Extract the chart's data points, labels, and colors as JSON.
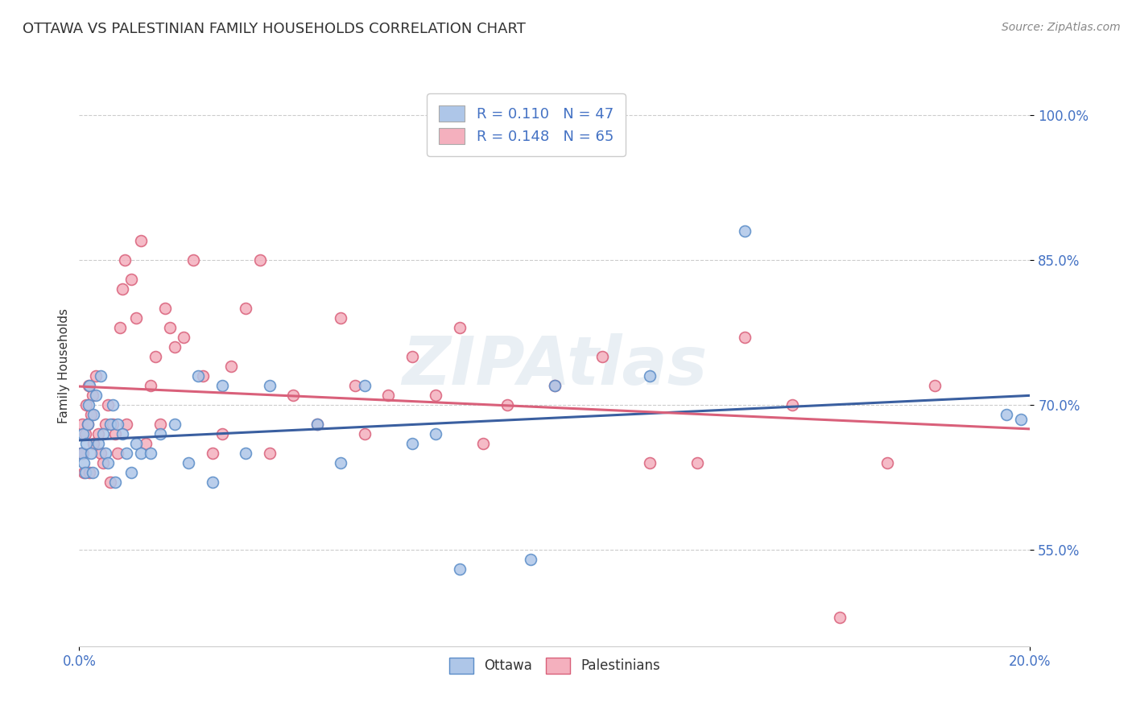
{
  "title": "OTTAWA VS PALESTINIAN FAMILY HOUSEHOLDS CORRELATION CHART",
  "source_text": "Source: ZipAtlas.com",
  "ylabel": "Family Households",
  "xlim": [
    0.0,
    20.0
  ],
  "ylim": [
    45.0,
    103.0
  ],
  "yticks": [
    55.0,
    70.0,
    85.0,
    100.0
  ],
  "xticks": [
    0.0,
    20.0
  ],
  "watermark": "ZIPAtlas",
  "title_color": "#333333",
  "title_fontsize": 13,
  "axis_color": "#4472c4",
  "bg_color": "#ffffff",
  "grid_color": "#cccccc",
  "ottawa_dot_color": "#aec6e8",
  "ottawa_dot_edge": "#5b8dc8",
  "palestinian_dot_color": "#f4b0be",
  "palestinian_dot_edge": "#d9607a",
  "ottawa_line_color": "#3a5fa0",
  "palestinian_line_color": "#d9607a",
  "legend_box_colors": [
    "#aec6e8",
    "#f4b0be"
  ],
  "legend_texts": [
    "R = 0.110   N = 47",
    "R = 0.148   N = 65"
  ],
  "source_color": "#888888",
  "bottom_legend_labels": [
    "Ottawa",
    "Palestinians"
  ],
  "ottawa_x": [
    0.05,
    0.08,
    0.1,
    0.12,
    0.15,
    0.18,
    0.2,
    0.22,
    0.25,
    0.28,
    0.3,
    0.35,
    0.4,
    0.45,
    0.5,
    0.55,
    0.6,
    0.65,
    0.7,
    0.75,
    0.8,
    0.9,
    1.0,
    1.1,
    1.2,
    1.3,
    1.5,
    1.7,
    2.0,
    2.3,
    2.5,
    2.8,
    3.0,
    3.5,
    4.0,
    5.0,
    5.5,
    6.0,
    7.0,
    7.5,
    8.0,
    9.5,
    10.0,
    12.0,
    14.0,
    19.5,
    19.8
  ],
  "ottawa_y": [
    65.0,
    67.0,
    64.0,
    63.0,
    66.0,
    68.0,
    70.0,
    72.0,
    65.0,
    63.0,
    69.0,
    71.0,
    66.0,
    73.0,
    67.0,
    65.0,
    64.0,
    68.0,
    70.0,
    62.0,
    68.0,
    67.0,
    65.0,
    63.0,
    66.0,
    65.0,
    65.0,
    67.0,
    68.0,
    64.0,
    73.0,
    62.0,
    72.0,
    65.0,
    72.0,
    68.0,
    64.0,
    72.0,
    66.0,
    67.0,
    53.0,
    54.0,
    72.0,
    73.0,
    88.0,
    69.0,
    68.5
  ],
  "palestinian_x": [
    0.04,
    0.06,
    0.08,
    0.1,
    0.12,
    0.15,
    0.18,
    0.2,
    0.22,
    0.25,
    0.28,
    0.3,
    0.35,
    0.4,
    0.45,
    0.5,
    0.55,
    0.6,
    0.65,
    0.7,
    0.75,
    0.8,
    0.85,
    0.9,
    0.95,
    1.0,
    1.1,
    1.2,
    1.3,
    1.4,
    1.5,
    1.6,
    1.7,
    1.8,
    1.9,
    2.0,
    2.2,
    2.4,
    2.6,
    2.8,
    3.0,
    3.2,
    3.5,
    3.8,
    4.0,
    4.5,
    5.0,
    5.5,
    6.0,
    7.0,
    7.5,
    8.0,
    8.5,
    10.0,
    12.0,
    14.0,
    15.0,
    16.0,
    17.0,
    18.0,
    9.0,
    13.0,
    11.0,
    6.5,
    5.8
  ],
  "palestinian_y": [
    65.0,
    68.0,
    65.0,
    63.0,
    67.0,
    70.0,
    68.0,
    72.0,
    63.0,
    69.0,
    71.0,
    66.0,
    73.0,
    67.0,
    65.0,
    64.0,
    68.0,
    70.0,
    62.0,
    68.0,
    67.0,
    65.0,
    78.0,
    82.0,
    85.0,
    68.0,
    83.0,
    79.0,
    87.0,
    66.0,
    72.0,
    75.0,
    68.0,
    80.0,
    78.0,
    76.0,
    77.0,
    85.0,
    73.0,
    65.0,
    67.0,
    74.0,
    80.0,
    85.0,
    65.0,
    71.0,
    68.0,
    79.0,
    67.0,
    75.0,
    71.0,
    78.0,
    66.0,
    72.0,
    64.0,
    77.0,
    70.0,
    48.0,
    64.0,
    72.0,
    70.0,
    64.0,
    75.0,
    71.0,
    72.0
  ]
}
